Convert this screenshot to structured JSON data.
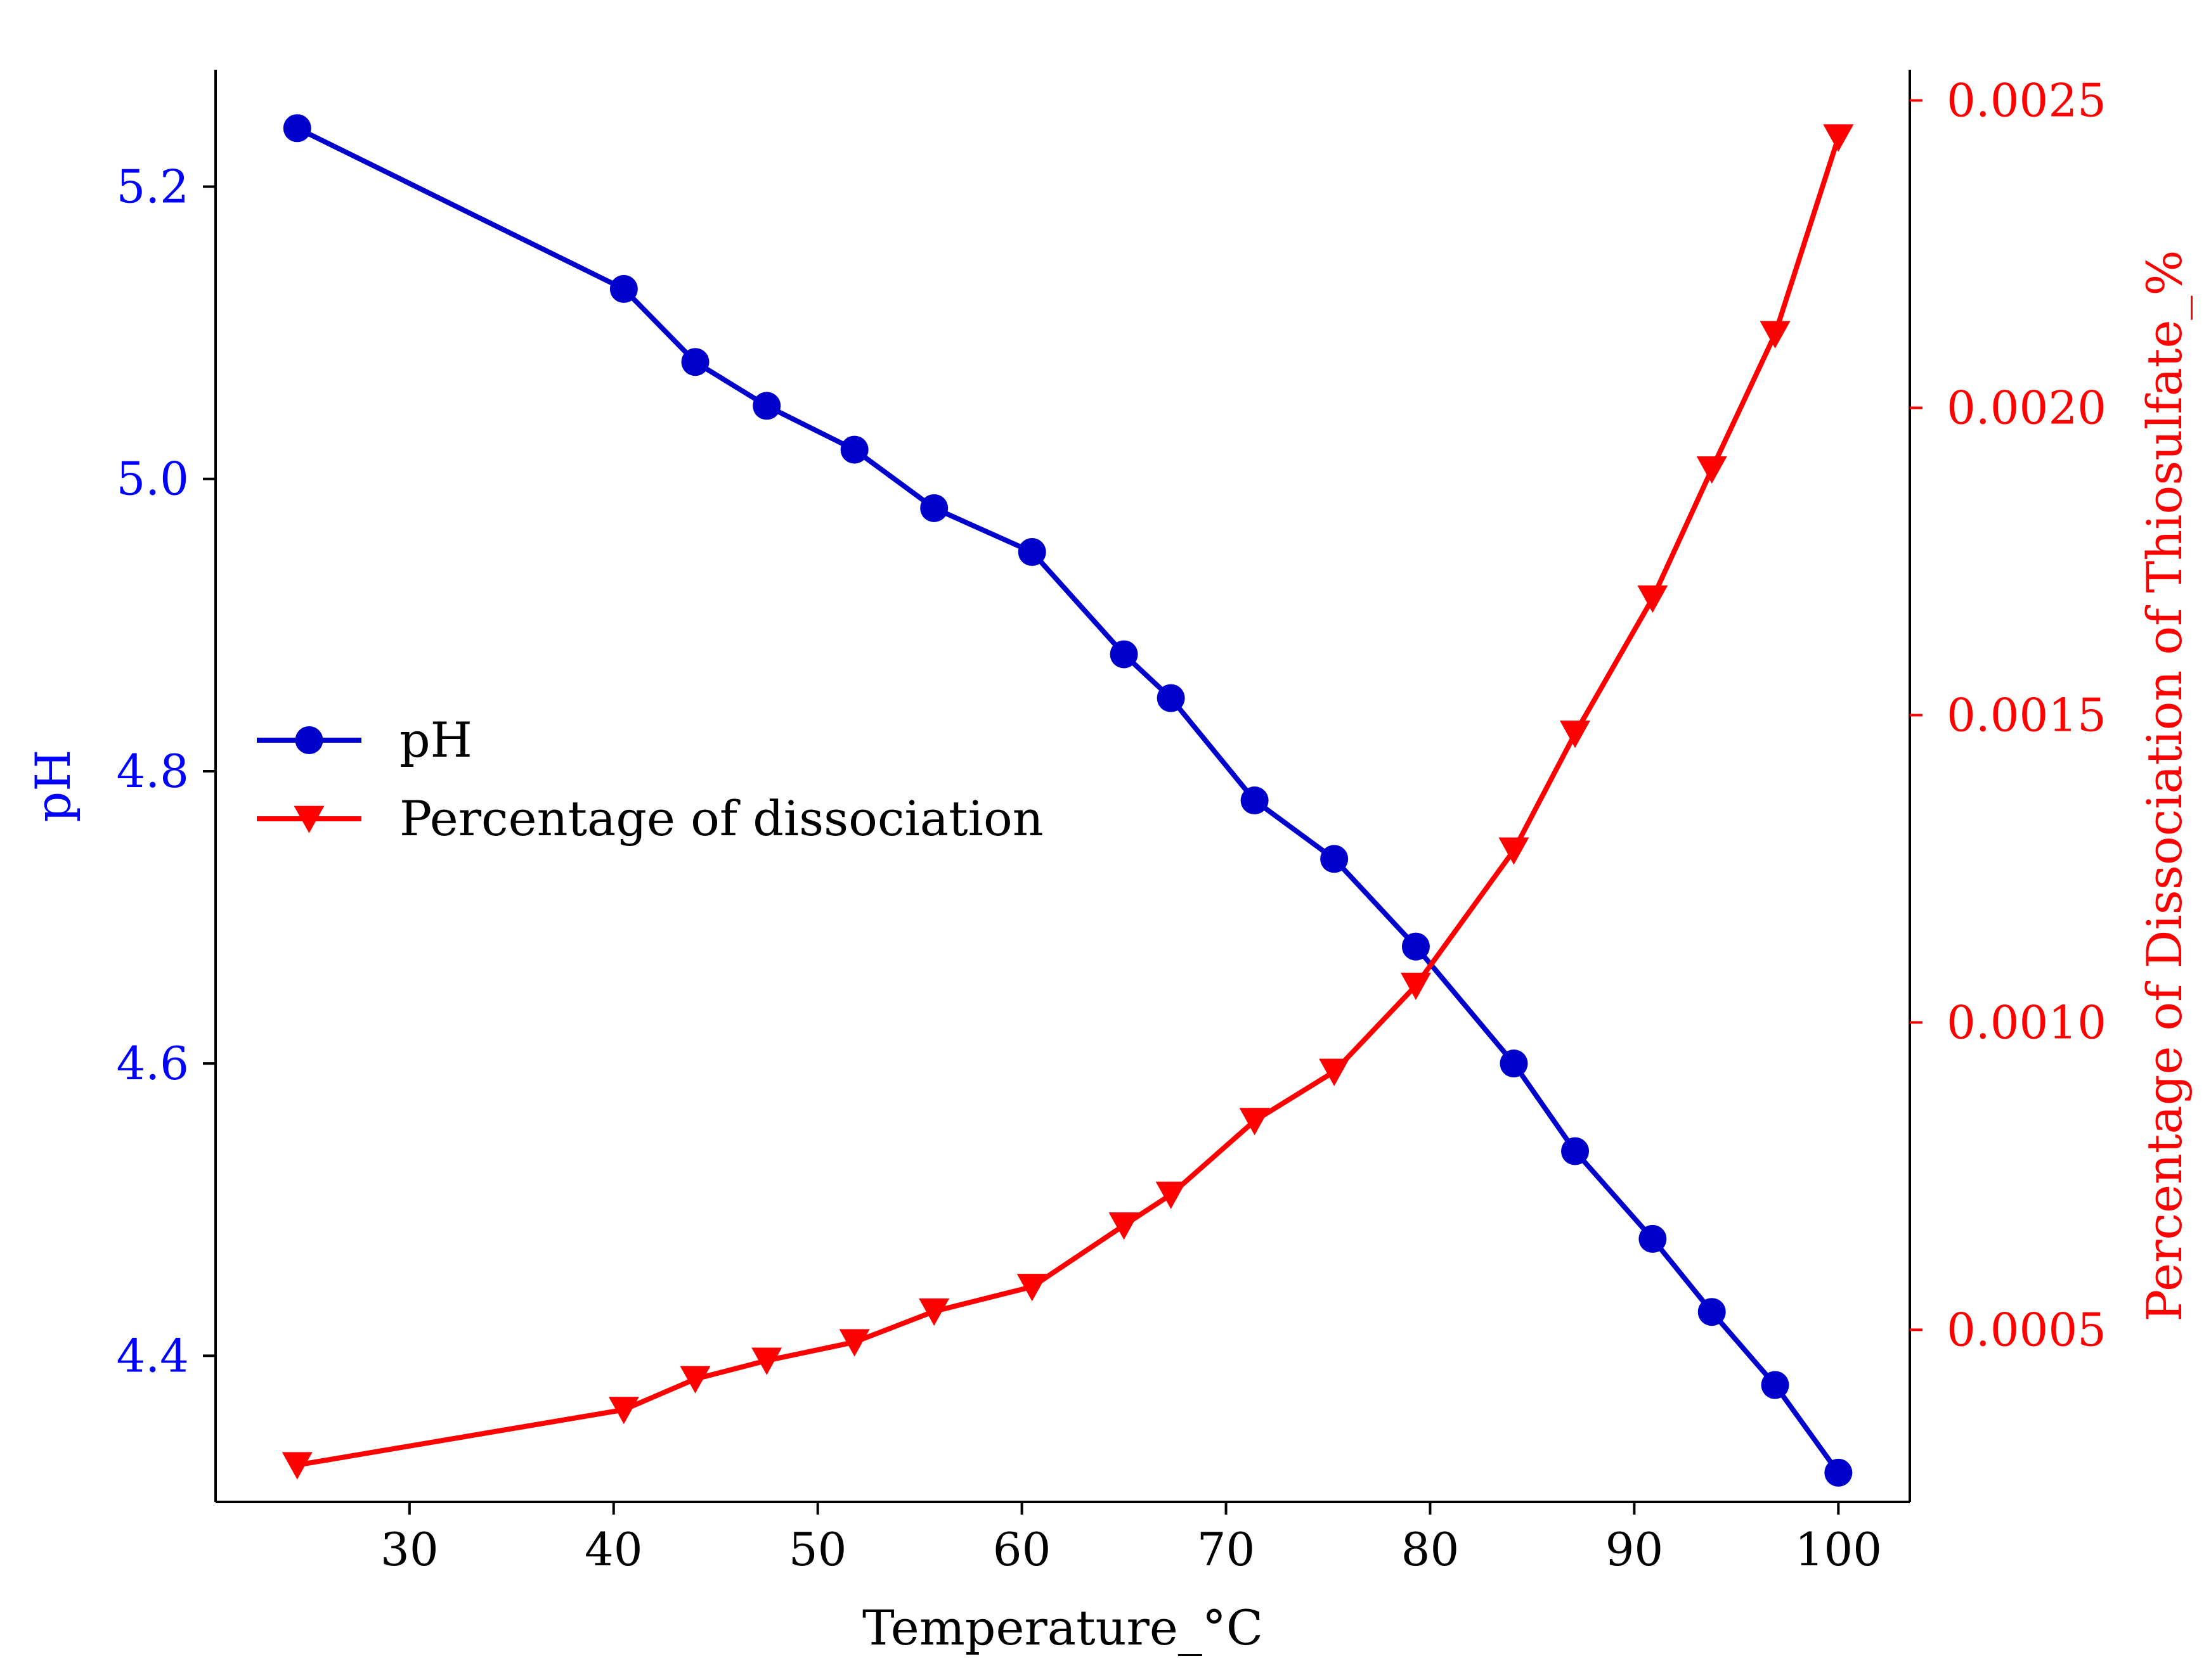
{
  "colors": {
    "ph": "#0000ff",
    "ph_series": "#0000cc",
    "dissociation": "#ff0000",
    "axis": "#000000"
  },
  "chart_data": {
    "type": "line",
    "title": "",
    "xlabel": "Temperature_°C",
    "ylabel_left": "pH",
    "ylabel_right": "Percentage of Dissociation of Thiosulfate_%",
    "xlim": [
      20.5,
      103.5
    ],
    "ylim_left": [
      4.3,
      5.28
    ],
    "ylim_right": [
      0.00022,
      0.00255
    ],
    "xticks": [
      30,
      40,
      50,
      60,
      70,
      80,
      90,
      100
    ],
    "xtick_labels": [
      "30",
      "40",
      "50",
      "60",
      "70",
      "80",
      "90",
      "100"
    ],
    "yticks_left": [
      4.4,
      4.6,
      4.8,
      5.0,
      5.2
    ],
    "ytick_labels_left": [
      "4.4",
      "4.6",
      "4.8",
      "5.0",
      "5.2"
    ],
    "yticks_right": [
      0.0005,
      0.001,
      0.0015,
      0.002,
      0.0025
    ],
    "ytick_labels_right": [
      "0.0005",
      "0.0010",
      "0.0015",
      "0.0020",
      "0.0025"
    ],
    "grid": false,
    "legend_position": "center-left",
    "x": [
      24.5,
      40.5,
      44,
      47.5,
      51.8,
      55.7,
      60.5,
      65,
      67.3,
      71.4,
      75.3,
      79.3,
      84.1,
      87.1,
      90.9,
      93.8,
      96.9,
      100
    ],
    "series": [
      {
        "name": "pH",
        "axis": "left",
        "marker": "circle",
        "values": [
          5.24,
          5.13,
          5.08,
          5.05,
          5.02,
          4.98,
          4.95,
          4.88,
          4.85,
          4.78,
          4.74,
          4.68,
          4.6,
          4.54,
          4.48,
          4.43,
          4.38,
          4.32
        ]
      },
      {
        "name": "Percentage of dissociation",
        "axis": "right",
        "marker": "triangle-down",
        "values": [
          0.00028,
          0.00037,
          0.00042,
          0.00045,
          0.00048,
          0.00053,
          0.00057,
          0.00067,
          0.00072,
          0.00084,
          0.00092,
          0.00106,
          0.00128,
          0.00147,
          0.00169,
          0.0019,
          0.00212,
          0.00244
        ]
      }
    ]
  }
}
